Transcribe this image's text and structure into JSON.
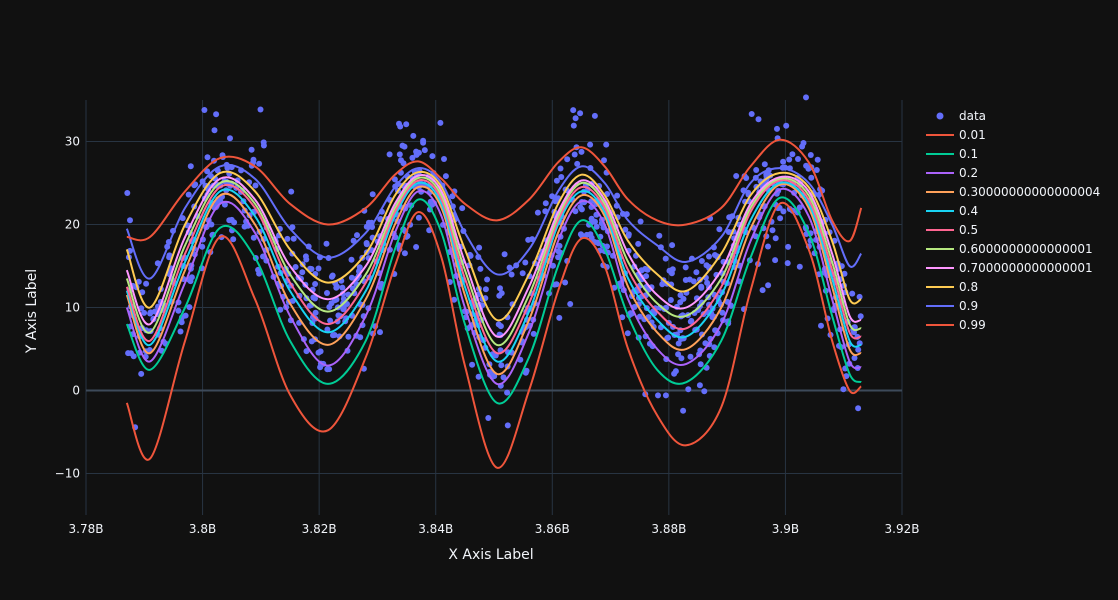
{
  "chart_data": {
    "type": "scatter",
    "title": "",
    "xlabel": "X Axis Label",
    "ylabel": "Y Axis Label",
    "xlim": [
      3780000000,
      3920000000
    ],
    "ylim": [
      -15,
      35
    ],
    "x_ticks": [
      {
        "value": 3780000000,
        "label": "3.78B"
      },
      {
        "value": 3800000000,
        "label": "3.8B"
      },
      {
        "value": 3820000000,
        "label": "3.82B"
      },
      {
        "value": 3840000000,
        "label": "3.84B"
      },
      {
        "value": 3860000000,
        "label": "3.86B"
      },
      {
        "value": 3880000000,
        "label": "3.88B"
      },
      {
        "value": 3900000000,
        "label": "3.9B"
      },
      {
        "value": 3920000000,
        "label": "3.92B"
      }
    ],
    "y_ticks": [
      {
        "value": -10,
        "label": "−10"
      },
      {
        "value": 0,
        "label": "0"
      },
      {
        "value": 10,
        "label": "10"
      },
      {
        "value": 20,
        "label": "20"
      },
      {
        "value": 30,
        "label": "30"
      }
    ],
    "grid": true,
    "legend_position": "right",
    "background": "#111111",
    "grid_color": "#283442",
    "zero_line_color": "#3d4a5a",
    "scatter": {
      "name": "data",
      "color": "#636efa",
      "x_range": [
        3787000000,
        3913000000
      ],
      "count": 1000,
      "approx_peaks_x": [
        3803500000,
        3836500000,
        3865000000,
        3899000000
      ],
      "approx_troughs_x": [
        3790500000,
        3821500000,
        3850500000,
        3883000000,
        3911000000
      ]
    },
    "series": [
      {
        "name": "0.01",
        "color": "#ef553b",
        "x": [
          3787000000,
          3791000000,
          3797000000,
          3803000000,
          3809000000,
          3815000000,
          3821500000,
          3828000000,
          3833000000,
          3837000000,
          3841000000,
          3845000000,
          3850500000,
          3856000000,
          3861000000,
          3865000000,
          3869000000,
          3873000000,
          3878000000,
          3883000000,
          3889000000,
          3894000000,
          3899000000,
          3904000000,
          3908000000,
          3911000000,
          3913000000
        ],
        "y": [
          -1.5,
          -8.2,
          6,
          18.5,
          11,
          -0.5,
          -4.8,
          4,
          15,
          21.5,
          16,
          3,
          -9.3,
          0,
          12,
          18.3,
          15,
          5,
          -3,
          -6.6,
          -2,
          12,
          22.5,
          17,
          6,
          0,
          0.5
        ]
      },
      {
        "name": "0.1",
        "color": "#00cc96",
        "x": [
          3787000000,
          3791000000,
          3797000000,
          3803000000,
          3809000000,
          3815000000,
          3821500000,
          3828000000,
          3833000000,
          3837000000,
          3841000000,
          3845000000,
          3850500000,
          3856000000,
          3861000000,
          3865000000,
          3869000000,
          3873000000,
          3878000000,
          3883000000,
          3889000000,
          3894000000,
          3899000000,
          3904000000,
          3908000000,
          3911000000,
          3913000000
        ],
        "y": [
          8,
          2.5,
          10,
          19.6,
          16,
          6,
          0.8,
          6,
          17,
          23,
          19,
          8,
          -1.5,
          4,
          15,
          20.5,
          17,
          9,
          2.5,
          1,
          6,
          16,
          23.2,
          19,
          9,
          2,
          1
        ]
      },
      {
        "name": "0.2",
        "color": "#ab63fa",
        "x": [
          3787000000,
          3791000000,
          3797000000,
          3803000000,
          3809000000,
          3815000000,
          3821500000,
          3828000000,
          3833000000,
          3837000000,
          3841000000,
          3845000000,
          3850500000,
          3856000000,
          3861000000,
          3865000000,
          3869000000,
          3873000000,
          3878000000,
          3883000000,
          3889000000,
          3894000000,
          3899000000,
          3904000000,
          3908000000,
          3911000000,
          3913000000
        ],
        "y": [
          10,
          3.5,
          13,
          22.5,
          19,
          9,
          3,
          9,
          19,
          24,
          21,
          10,
          0.8,
          7,
          18,
          22.8,
          20,
          11,
          5,
          3.2,
          8,
          18,
          24.2,
          21,
          11,
          3.5,
          2.8
        ]
      },
      {
        "name": "0.30000000000000004",
        "color": "#ffa15a",
        "x": [
          3787000000,
          3791000000,
          3797000000,
          3803000000,
          3809000000,
          3815000000,
          3821500000,
          3828000000,
          3833000000,
          3837000000,
          3841000000,
          3845000000,
          3850500000,
          3856000000,
          3861000000,
          3865000000,
          3869000000,
          3873000000,
          3878000000,
          3883000000,
          3889000000,
          3894000000,
          3899000000,
          3904000000,
          3908000000,
          3911000000,
          3913000000
        ],
        "y": [
          11.5,
          4.5,
          14.5,
          23.5,
          20,
          10.5,
          5.5,
          11,
          20,
          24.5,
          22,
          11.5,
          2,
          8.5,
          19,
          23.5,
          21,
          12.5,
          7,
          5,
          10,
          19.5,
          24.8,
          22,
          12.5,
          5,
          4.5
        ]
      },
      {
        "name": "0.4",
        "color": "#19d3f3",
        "x": [
          3787000000,
          3791000000,
          3797000000,
          3803000000,
          3809000000,
          3815000000,
          3821500000,
          3828000000,
          3833000000,
          3837000000,
          3841000000,
          3845000000,
          3850500000,
          3856000000,
          3861000000,
          3865000000,
          3869000000,
          3873000000,
          3878000000,
          3883000000,
          3889000000,
          3894000000,
          3899000000,
          3904000000,
          3908000000,
          3911000000,
          3913000000
        ],
        "y": [
          12,
          5.5,
          15.5,
          24,
          21,
          12,
          7,
          12,
          21,
          25,
          22.5,
          12.5,
          3.5,
          9.5,
          20,
          24,
          21.5,
          13.5,
          8.5,
          6.5,
          11.5,
          20.5,
          25,
          22.5,
          13.5,
          6,
          5.5
        ]
      },
      {
        "name": "0.5",
        "color": "#ff6692",
        "x": [
          3787000000,
          3791000000,
          3797000000,
          3803000000,
          3809000000,
          3815000000,
          3821500000,
          3828000000,
          3833000000,
          3837000000,
          3841000000,
          3845000000,
          3850500000,
          3856000000,
          3861000000,
          3865000000,
          3869000000,
          3873000000,
          3878000000,
          3883000000,
          3889000000,
          3894000000,
          3899000000,
          3904000000,
          3908000000,
          3911000000,
          3913000000
        ],
        "y": [
          12.5,
          6,
          16.5,
          24.5,
          22,
          13,
          8,
          13,
          21.5,
          25.3,
          23,
          13.5,
          4.5,
          10.5,
          20.5,
          24.5,
          22,
          14.5,
          9.5,
          7.5,
          12.5,
          21.5,
          25.3,
          23,
          14.5,
          7,
          6.5
        ]
      },
      {
        "name": "0.6000000000000001",
        "color": "#b6e880",
        "x": [
          3787000000,
          3791000000,
          3797000000,
          3803000000,
          3809000000,
          3815000000,
          3821500000,
          3828000000,
          3833000000,
          3837000000,
          3841000000,
          3845000000,
          3850500000,
          3856000000,
          3861000000,
          3865000000,
          3869000000,
          3873000000,
          3878000000,
          3883000000,
          3889000000,
          3894000000,
          3899000000,
          3904000000,
          3908000000,
          3911000000,
          3913000000
        ],
        "y": [
          13.5,
          7,
          17.5,
          25,
          22.5,
          14,
          9.5,
          14,
          22,
          25.6,
          23.5,
          14.5,
          5.5,
          11.5,
          21,
          25,
          22.5,
          15.5,
          10.5,
          9,
          13.5,
          22,
          25.5,
          23.5,
          15.5,
          8,
          7.5
        ]
      },
      {
        "name": "0.7000000000000001",
        "color": "#ff97ff",
        "x": [
          3787000000,
          3791000000,
          3797000000,
          3803000000,
          3809000000,
          3815000000,
          3821500000,
          3828000000,
          3833000000,
          3837000000,
          3841000000,
          3845000000,
          3850500000,
          3856000000,
          3861000000,
          3865000000,
          3869000000,
          3873000000,
          3878000000,
          3883000000,
          3889000000,
          3894000000,
          3899000000,
          3904000000,
          3908000000,
          3911000000,
          3913000000
        ],
        "y": [
          14.5,
          8,
          18.5,
          25.5,
          23,
          15,
          11,
          15,
          22.5,
          25.9,
          24,
          15.5,
          6.5,
          12.5,
          21.5,
          25.3,
          23,
          16.5,
          11.5,
          10,
          14.5,
          22.5,
          25.7,
          24,
          16.5,
          9,
          8.5
        ]
      },
      {
        "name": "0.8",
        "color": "#fecb52",
        "x": [
          3787000000,
          3791000000,
          3797000000,
          3803000000,
          3809000000,
          3815000000,
          3821500000,
          3828000000,
          3833000000,
          3837000000,
          3841000000,
          3845000000,
          3850500000,
          3856000000,
          3861000000,
          3865000000,
          3869000000,
          3873000000,
          3878000000,
          3883000000,
          3889000000,
          3894000000,
          3899000000,
          3904000000,
          3908000000,
          3911000000,
          3913000000
        ],
        "y": [
          17,
          10,
          20,
          26.2,
          24,
          17,
          13,
          16.5,
          23.5,
          26.3,
          24.5,
          17,
          8.5,
          14,
          22.5,
          26,
          23.5,
          18,
          14,
          12,
          16.5,
          23.5,
          26.2,
          24.5,
          18,
          11,
          11
        ]
      },
      {
        "name": "0.9",
        "color": "#636efa",
        "x": [
          3787000000,
          3791000000,
          3797000000,
          3803000000,
          3809000000,
          3815000000,
          3821500000,
          3828000000,
          3833000000,
          3837000000,
          3841000000,
          3845000000,
          3850500000,
          3856000000,
          3861000000,
          3865000000,
          3869000000,
          3873000000,
          3878000000,
          3883000000,
          3889000000,
          3894000000,
          3899000000,
          3904000000,
          3908000000,
          3911000000,
          3913000000
        ],
        "y": [
          19.5,
          13.5,
          22,
          27,
          25.5,
          19.5,
          16,
          19,
          24.5,
          26.8,
          25,
          19,
          14,
          17,
          24,
          27,
          25,
          20.5,
          17.5,
          15.5,
          18.5,
          25,
          26.8,
          25,
          20,
          15,
          16.5
        ]
      },
      {
        "name": "0.99",
        "color": "#ef553b",
        "x": [
          3787000000,
          3791000000,
          3797000000,
          3803000000,
          3809000000,
          3815000000,
          3821500000,
          3828000000,
          3833000000,
          3837000000,
          3841000000,
          3845000000,
          3850500000,
          3856000000,
          3861000000,
          3865000000,
          3869000000,
          3873000000,
          3878000000,
          3883000000,
          3889000000,
          3894000000,
          3899000000,
          3904000000,
          3908000000,
          3911000000,
          3913000000
        ],
        "y": [
          18.5,
          18.5,
          24,
          28,
          27,
          22.5,
          20,
          22,
          26,
          27.6,
          25.5,
          22.5,
          20.5,
          23,
          27.5,
          29.3,
          27,
          23,
          20.5,
          20,
          22,
          27,
          30.2,
          27.5,
          20.5,
          18,
          22
        ]
      }
    ]
  }
}
